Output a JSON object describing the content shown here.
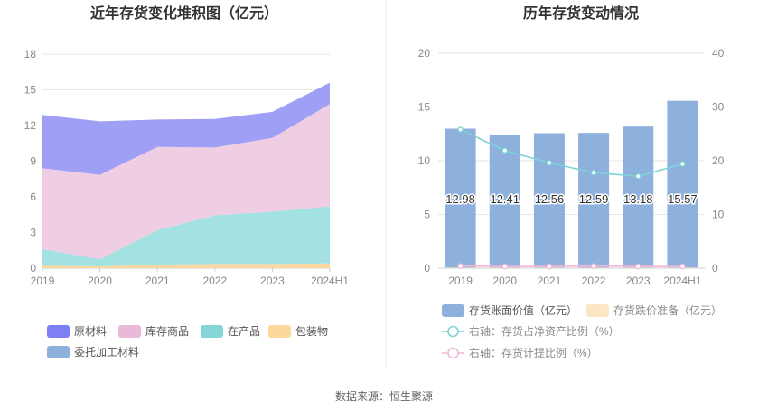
{
  "source_text": "数据来源：恒生聚源",
  "chart_data": [
    {
      "type": "area",
      "stacked": true,
      "title": "近年存货变化堆积图（亿元）",
      "categories": [
        "2019",
        "2020",
        "2021",
        "2022",
        "2023",
        "2024H1"
      ],
      "ylim": [
        0,
        18
      ],
      "yticks": [
        0,
        3,
        6,
        9,
        12,
        15,
        18
      ],
      "grid": true,
      "legend_position": "bottom-left",
      "series": [
        {
          "name": "包装物",
          "color": "#fcd8a0",
          "values": [
            0.2,
            0.15,
            0.3,
            0.35,
            0.35,
            0.4
          ]
        },
        {
          "name": "在产品",
          "color": "#a3e1e3",
          "values": [
            1.4,
            0.6,
            2.9,
            4.1,
            4.4,
            4.8
          ]
        },
        {
          "name": "库存商品",
          "color": "#efcde3",
          "values": [
            6.8,
            7.1,
            7.0,
            5.7,
            6.2,
            8.6
          ]
        },
        {
          "name": "原材料",
          "color": "#9f9ff6",
          "values": [
            4.5,
            4.5,
            2.3,
            2.4,
            2.2,
            1.8
          ]
        },
        {
          "name": "委托加工材料",
          "color": "#8eb0dc",
          "values": [
            0,
            0,
            0,
            0,
            0,
            0
          ]
        }
      ],
      "legend": [
        {
          "name": "原材料",
          "color": "#7f7ff5"
        },
        {
          "name": "库存商品",
          "color": "#e9b9d8"
        },
        {
          "name": "在产品",
          "color": "#86d6d8"
        },
        {
          "name": "包装物",
          "color": "#fcd89c"
        },
        {
          "name": "委托加工材料",
          "color": "#8eb0dc"
        }
      ]
    },
    {
      "type": "bar",
      "title": "历年存货变动情况",
      "categories": [
        "2019",
        "2020",
        "2021",
        "2022",
        "2023",
        "2024H1"
      ],
      "ylim": [
        0,
        20
      ],
      "yticks": [
        0,
        5,
        10,
        15,
        20
      ],
      "y2lim": [
        0,
        40
      ],
      "y2ticks": [
        0,
        10,
        20,
        30,
        40
      ],
      "grid": true,
      "legend_position": "bottom",
      "bar_series": {
        "name": "存货账面价值（亿元）",
        "color": "#8eb0dc",
        "values": [
          12.98,
          12.41,
          12.56,
          12.59,
          13.18,
          15.57
        ]
      },
      "bar_labels": [
        "12.98",
        "12.41",
        "12.56",
        "12.59",
        "13.18",
        "15.57"
      ],
      "provision_series": {
        "name": "存货跌价准备（亿元）",
        "color": "#fce7c5",
        "values": [
          0.05,
          0.05,
          0.05,
          0.05,
          0.05,
          0.05
        ]
      },
      "line_series": [
        {
          "name": "右轴：存货占净资产比例（%）",
          "color": "#7fd3d6",
          "axis": "right",
          "values": [
            25.8,
            21.9,
            19.6,
            17.8,
            17.1,
            19.4
          ]
        },
        {
          "name": "右轴：存货计提比例（%）",
          "color": "#f2b6d8",
          "axis": "right",
          "values": [
            0.4,
            0.3,
            0.3,
            0.4,
            0.3,
            0.3
          ]
        }
      ]
    }
  ]
}
